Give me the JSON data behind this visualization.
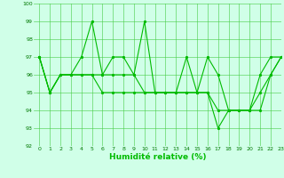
{
  "x": [
    0,
    1,
    2,
    3,
    4,
    5,
    6,
    7,
    8,
    9,
    10,
    11,
    12,
    13,
    14,
    15,
    16,
    17,
    18,
    19,
    20,
    21,
    22,
    23
  ],
  "y_max": [
    97,
    95,
    96,
    96,
    97,
    99,
    96,
    97,
    97,
    96,
    99,
    95,
    95,
    95,
    97,
    95,
    97,
    96,
    94,
    94,
    94,
    96,
    97,
    97
  ],
  "y_avg": [
    97,
    95,
    96,
    96,
    96,
    96,
    96,
    96,
    96,
    96,
    95,
    95,
    95,
    95,
    95,
    95,
    95,
    94,
    94,
    94,
    94,
    95,
    96,
    97
  ],
  "y_min": [
    97,
    95,
    96,
    96,
    96,
    96,
    95,
    95,
    95,
    95,
    95,
    95,
    95,
    95,
    95,
    95,
    95,
    93,
    94,
    94,
    94,
    94,
    96,
    97
  ],
  "line_color": "#00bb00",
  "bg_color": "#d0ffe8",
  "grid_color": "#44cc44",
  "xlabel": "Humidité relative (%)",
  "ylim": [
    92,
    100
  ],
  "xlim": [
    -0.5,
    23
  ],
  "yticks": [
    92,
    93,
    94,
    95,
    96,
    97,
    98,
    99,
    100
  ],
  "xticks": [
    0,
    1,
    2,
    3,
    4,
    5,
    6,
    7,
    8,
    9,
    10,
    11,
    12,
    13,
    14,
    15,
    16,
    17,
    18,
    19,
    20,
    21,
    22,
    23
  ]
}
